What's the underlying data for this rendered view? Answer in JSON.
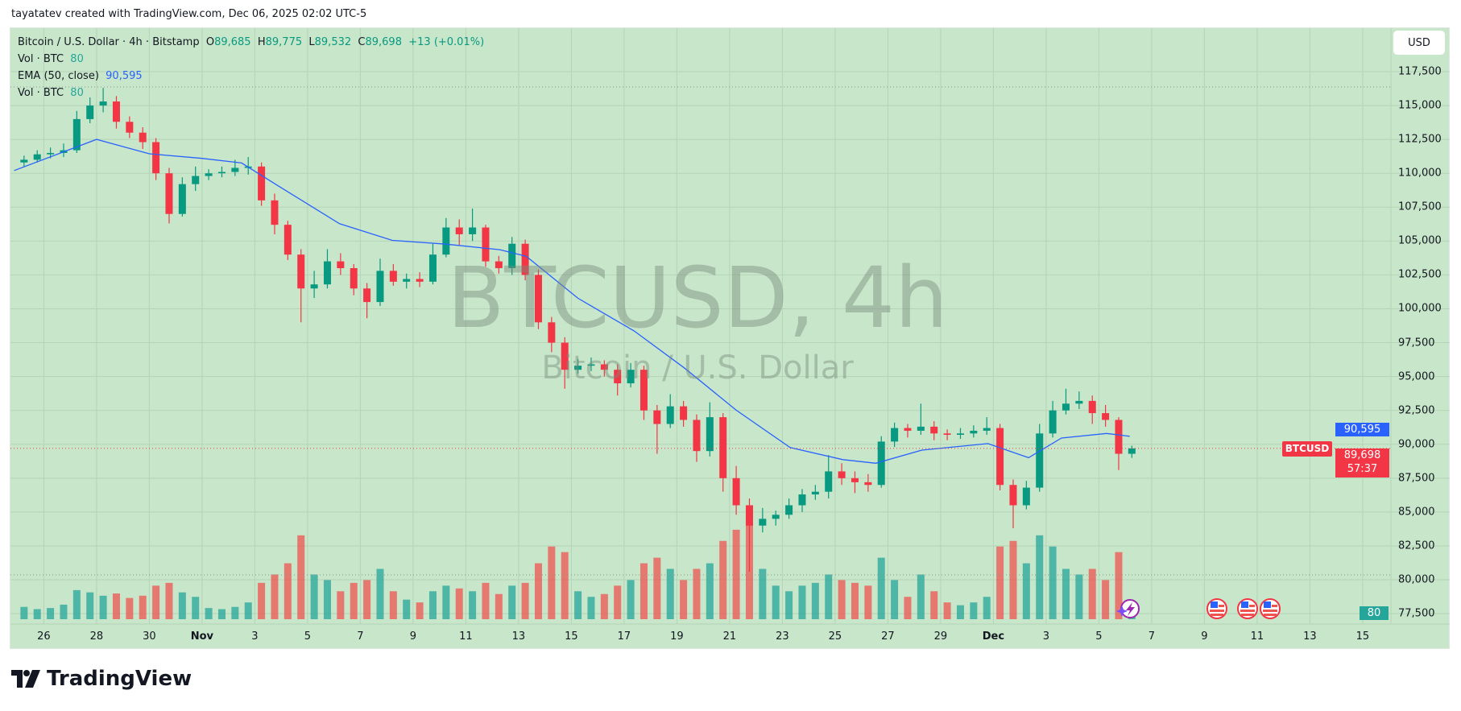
{
  "credit": "tayatatev created with TradingView.com, Dec 06, 2025 02:02 UTC-5",
  "legend": {
    "symbol": "Bitcoin / U.S. Dollar · 4h · Bitstamp",
    "o_label": "O",
    "o": "89,685",
    "h_label": "H",
    "h": "89,775",
    "l_label": "L",
    "l": "89,532",
    "c_label": "C",
    "c": "89,698",
    "change": "+13 (+0.01%)",
    "vol_label": "Vol · BTC",
    "vol": "80",
    "ema_label": "EMA (50, close)",
    "ema": "90,595",
    "vol2_label": "Vol · BTC",
    "vol2": "80"
  },
  "currency_button": "USD",
  "watermark": {
    "title": "BTCUSD, 4h",
    "subtitle": "Bitcoin / U.S. Dollar"
  },
  "price_badges": {
    "ema": "90,595",
    "last": "89,698",
    "countdown": "57:37",
    "symbol": "BTCUSD",
    "volume": "80"
  },
  "footer_logo": "TradingView",
  "colors": {
    "up": "#089981",
    "down": "#f23645",
    "ema": "#2962ff",
    "background": "#c8e6c9",
    "volume_up": "#26a69a",
    "volume_down": "#ef5350"
  },
  "icons": [
    "lightning-event-icon",
    "us-flag-icon",
    "us-flag-icon",
    "us-flag-icon"
  ],
  "chart_data": {
    "type": "candlestick",
    "title": "",
    "ylim": [
      77500,
      117500
    ],
    "y_ticks": [
      "117,500",
      "115,000",
      "112,500",
      "110,000",
      "107,500",
      "105,000",
      "102,500",
      "100,000",
      "97,500",
      "95,000",
      "92,500",
      "90,000",
      "87,500",
      "85,000",
      "82,500",
      "80,000",
      "77,500"
    ],
    "x_ticks": [
      {
        "date": "2025-10-26",
        "label": "26"
      },
      {
        "date": "2025-10-28",
        "label": "28"
      },
      {
        "date": "2025-10-30",
        "label": "30"
      },
      {
        "date": "2025-11-01",
        "label": "Nov",
        "month": true
      },
      {
        "date": "2025-11-03",
        "label": "3"
      },
      {
        "date": "2025-11-05",
        "label": "5"
      },
      {
        "date": "2025-11-07",
        "label": "7"
      },
      {
        "date": "2025-11-09",
        "label": "9"
      },
      {
        "date": "2025-11-11",
        "label": "11"
      },
      {
        "date": "2025-11-13",
        "label": "13"
      },
      {
        "date": "2025-11-15",
        "label": "15"
      },
      {
        "date": "2025-11-17",
        "label": "17"
      },
      {
        "date": "2025-11-19",
        "label": "19"
      },
      {
        "date": "2025-11-21",
        "label": "21"
      },
      {
        "date": "2025-11-23",
        "label": "23"
      },
      {
        "date": "2025-11-25",
        "label": "25"
      },
      {
        "date": "2025-11-27",
        "label": "27"
      },
      {
        "date": "2025-11-29",
        "label": "29"
      },
      {
        "date": "2025-12-01",
        "label": "Dec",
        "month": true
      },
      {
        "date": "2025-12-03",
        "label": "3"
      },
      {
        "date": "2025-12-05",
        "label": "5"
      },
      {
        "date": "2025-12-07",
        "label": "7"
      },
      {
        "date": "2025-12-09",
        "label": "9"
      },
      {
        "date": "2025-12-11",
        "label": "11"
      },
      {
        "date": "2025-12-13",
        "label": "13"
      },
      {
        "date": "2025-12-15",
        "label": "15"
      }
    ],
    "grid": true,
    "last_price": 89698,
    "columns": [
      "time",
      "open",
      "high",
      "low",
      "close",
      "volume"
    ],
    "candles": [
      [
        "2025-10-25 00:00",
        110800,
        111300,
        110500,
        111000,
        220
      ],
      [
        "2025-10-25 12:00",
        111000,
        111700,
        110800,
        111400,
        180
      ],
      [
        "2025-10-26 00:00",
        111400,
        111900,
        111100,
        111500,
        200
      ],
      [
        "2025-10-26 12:00",
        111500,
        112200,
        111200,
        111700,
        260
      ],
      [
        "2025-10-27 00:00",
        111700,
        114600,
        111500,
        114000,
        520
      ],
      [
        "2025-10-27 12:00",
        114000,
        115600,
        113700,
        115000,
        480
      ],
      [
        "2025-10-28 00:00",
        115000,
        116300,
        114500,
        115300,
        420
      ],
      [
        "2025-10-28 12:00",
        115300,
        115700,
        113300,
        113800,
        460
      ],
      [
        "2025-10-29 00:00",
        113800,
        114200,
        112600,
        113000,
        380
      ],
      [
        "2025-10-29 12:00",
        113000,
        113400,
        111800,
        112300,
        420
      ],
      [
        "2025-10-30 00:00",
        112300,
        112600,
        109500,
        110000,
        600
      ],
      [
        "2025-10-30 12:00",
        110000,
        110400,
        106300,
        107000,
        650
      ],
      [
        "2025-10-31 00:00",
        107000,
        109700,
        106800,
        109200,
        480
      ],
      [
        "2025-10-31 12:00",
        109200,
        110500,
        108700,
        109800,
        400
      ],
      [
        "2025-11-01 00:00",
        109800,
        110300,
        109500,
        110000,
        200
      ],
      [
        "2025-11-01 12:00",
        110000,
        110500,
        109700,
        110100,
        180
      ],
      [
        "2025-11-02 00:00",
        110100,
        111000,
        109800,
        110400,
        220
      ],
      [
        "2025-11-02 12:00",
        110400,
        111200,
        109900,
        110500,
        300
      ],
      [
        "2025-11-03 00:00",
        110500,
        110800,
        107600,
        108000,
        650
      ],
      [
        "2025-11-03 12:00",
        108000,
        108500,
        105500,
        106200,
        800
      ],
      [
        "2025-11-04 00:00",
        106200,
        106500,
        103600,
        104000,
        1000
      ],
      [
        "2025-11-04 12:00",
        104000,
        104400,
        99000,
        101500,
        1500
      ],
      [
        "2025-11-05 00:00",
        101500,
        102800,
        100800,
        101800,
        800
      ],
      [
        "2025-11-05 12:00",
        101800,
        104400,
        101500,
        103500,
        700
      ],
      [
        "2025-11-06 00:00",
        103500,
        104100,
        102500,
        103000,
        500
      ],
      [
        "2025-11-06 12:00",
        103000,
        103300,
        101000,
        101500,
        650
      ],
      [
        "2025-11-07 00:00",
        101500,
        101900,
        99300,
        100500,
        700
      ],
      [
        "2025-11-07 12:00",
        100500,
        103700,
        100200,
        102800,
        900
      ],
      [
        "2025-11-08 00:00",
        102800,
        103300,
        101700,
        102000,
        500
      ],
      [
        "2025-11-08 12:00",
        102000,
        102600,
        101500,
        102200,
        350
      ],
      [
        "2025-11-09 00:00",
        102200,
        102700,
        101600,
        102000,
        300
      ],
      [
        "2025-11-09 12:00",
        102000,
        104800,
        101800,
        104000,
        500
      ],
      [
        "2025-11-10 00:00",
        104000,
        106700,
        103800,
        106000,
        600
      ],
      [
        "2025-11-10 12:00",
        106000,
        106600,
        104700,
        105500,
        550
      ],
      [
        "2025-11-11 00:00",
        105500,
        107400,
        105000,
        106000,
        500
      ],
      [
        "2025-11-11 12:00",
        106000,
        106200,
        103100,
        103500,
        650
      ],
      [
        "2025-11-12 00:00",
        103500,
        103900,
        102600,
        103000,
        450
      ],
      [
        "2025-11-12 12:00",
        103000,
        105300,
        102500,
        104800,
        600
      ],
      [
        "2025-11-13 00:00",
        104800,
        105100,
        102100,
        102500,
        650
      ],
      [
        "2025-11-13 12:00",
        102500,
        102900,
        98500,
        99000,
        1000
      ],
      [
        "2025-11-14 00:00",
        99000,
        99400,
        96800,
        97500,
        1300
      ],
      [
        "2025-11-14 12:00",
        97500,
        97900,
        94100,
        95500,
        1200
      ],
      [
        "2025-11-15 00:00",
        95500,
        96300,
        95200,
        95800,
        500
      ],
      [
        "2025-11-15 12:00",
        95800,
        96400,
        95400,
        95900,
        400
      ],
      [
        "2025-11-16 00:00",
        95900,
        96200,
        95000,
        95500,
        450
      ],
      [
        "2025-11-16 12:00",
        95500,
        95900,
        93600,
        94500,
        600
      ],
      [
        "2025-11-17 00:00",
        94500,
        96000,
        94200,
        95500,
        700
      ],
      [
        "2025-11-17 12:00",
        95500,
        95800,
        91800,
        92500,
        1000
      ],
      [
        "2025-11-18 00:00",
        92500,
        92900,
        89300,
        91500,
        1100
      ],
      [
        "2025-11-18 12:00",
        91500,
        93700,
        91200,
        92800,
        900
      ],
      [
        "2025-11-19 00:00",
        92800,
        93200,
        91300,
        91800,
        700
      ],
      [
        "2025-11-19 12:00",
        91800,
        92200,
        88700,
        89500,
        900
      ],
      [
        "2025-11-20 00:00",
        89500,
        93100,
        89100,
        92000,
        1000
      ],
      [
        "2025-11-20 12:00",
        92000,
        92300,
        86500,
        87500,
        1400
      ],
      [
        "2025-11-21 00:00",
        87500,
        88400,
        84800,
        85500,
        1600
      ],
      [
        "2025-11-21 12:00",
        85500,
        86000,
        80600,
        84000,
        1800
      ],
      [
        "2025-11-22 00:00",
        84000,
        85300,
        83500,
        84500,
        900
      ],
      [
        "2025-11-22 12:00",
        84500,
        85100,
        84000,
        84800,
        600
      ],
      [
        "2025-11-23 00:00",
        84800,
        86000,
        84500,
        85500,
        500
      ],
      [
        "2025-11-23 12:00",
        85500,
        86700,
        85000,
        86300,
        600
      ],
      [
        "2025-11-24 00:00",
        86300,
        87000,
        85900,
        86500,
        650
      ],
      [
        "2025-11-24 12:00",
        86500,
        89200,
        86000,
        88000,
        800
      ],
      [
        "2025-11-25 00:00",
        88000,
        88600,
        87000,
        87500,
        700
      ],
      [
        "2025-11-25 12:00",
        87500,
        88000,
        86400,
        87200,
        650
      ],
      [
        "2025-11-26 00:00",
        87200,
        87800,
        86500,
        87000,
        600
      ],
      [
        "2025-11-26 12:00",
        87000,
        90600,
        86800,
        90200,
        1100
      ],
      [
        "2025-11-27 00:00",
        90200,
        91600,
        89800,
        91200,
        700
      ],
      [
        "2025-11-27 12:00",
        91200,
        91500,
        90500,
        91000,
        400
      ],
      [
        "2025-11-28 00:00",
        91000,
        93000,
        90700,
        91300,
        800
      ],
      [
        "2025-11-28 12:00",
        91300,
        91700,
        90300,
        90800,
        500
      ],
      [
        "2025-11-29 00:00",
        90800,
        91100,
        90300,
        90700,
        300
      ],
      [
        "2025-11-29 12:00",
        90700,
        91200,
        90400,
        90800,
        250
      ],
      [
        "2025-11-30 00:00",
        90800,
        91400,
        90500,
        91000,
        300
      ],
      [
        "2025-11-30 12:00",
        91000,
        92000,
        90700,
        91200,
        400
      ],
      [
        "2025-12-01 00:00",
        91200,
        91500,
        86600,
        87000,
        1300
      ],
      [
        "2025-12-01 12:00",
        87000,
        87400,
        83800,
        85500,
        1400
      ],
      [
        "2025-12-02 00:00",
        85500,
        87300,
        85200,
        86800,
        1000
      ],
      [
        "2025-12-02 12:00",
        86800,
        91500,
        86500,
        90800,
        1500
      ],
      [
        "2025-12-03 00:00",
        90800,
        93200,
        90500,
        92500,
        1300
      ],
      [
        "2025-12-03 12:00",
        92500,
        94100,
        92200,
        93000,
        900
      ],
      [
        "2025-12-04 00:00",
        93000,
        93900,
        92600,
        93200,
        800
      ],
      [
        "2025-12-04 12:00",
        93200,
        93600,
        91500,
        92300,
        900
      ],
      [
        "2025-12-05 00:00",
        92300,
        92900,
        91300,
        91800,
        700
      ],
      [
        "2025-12-05 12:00",
        91800,
        92000,
        88100,
        89300,
        1200
      ],
      [
        "2025-12-06 00:00",
        89300,
        89900,
        89000,
        89698,
        80
      ]
    ],
    "ema50": [
      [
        "2025-10-24 21:00",
        110200
      ],
      [
        "2025-10-28 00:00",
        112500
      ],
      [
        "2025-10-30 00:00",
        111440
      ],
      [
        "2025-11-01 00:00",
        111100
      ],
      [
        "2025-11-02 12:00",
        110760
      ],
      [
        "2025-11-03 22:00",
        109040
      ],
      [
        "2025-11-06 05:00",
        106280
      ],
      [
        "2025-11-08 05:00",
        105050
      ],
      [
        "2025-11-10 06:00",
        104770
      ],
      [
        "2025-11-12 07:00",
        104360
      ],
      [
        "2025-11-13 07:00",
        103870
      ],
      [
        "2025-11-15 06:00",
        100780
      ],
      [
        "2025-11-17 09:00",
        98370
      ],
      [
        "2025-11-19 07:00",
        95620
      ],
      [
        "2025-11-21 06:00",
        92520
      ],
      [
        "2025-11-23 07:00",
        89760
      ],
      [
        "2025-11-25 07:00",
        88870
      ],
      [
        "2025-11-26 13:00",
        88600
      ],
      [
        "2025-11-28 07:00",
        89570
      ],
      [
        "2025-11-30 19:00",
        90050
      ],
      [
        "2025-12-02 08:00",
        89010
      ],
      [
        "2025-12-03 14:00",
        90460
      ],
      [
        "2025-12-05 07:00",
        90800
      ],
      [
        "2025-12-06 04:00",
        90595
      ]
    ]
  }
}
